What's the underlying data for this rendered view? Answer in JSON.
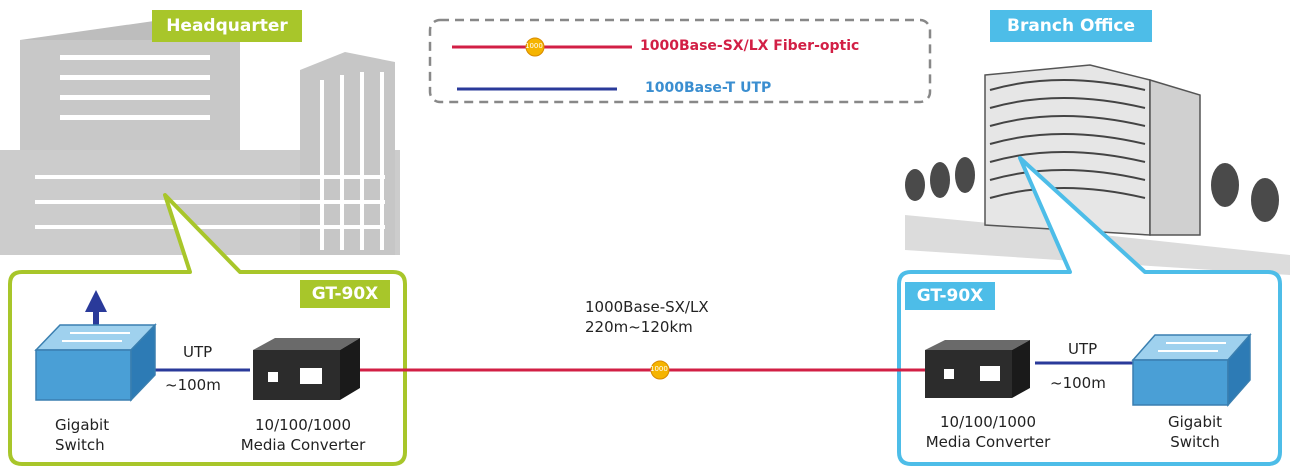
{
  "colors": {
    "hq_accent": "#a8c62a",
    "branch_accent": "#4dbde8",
    "fiber": "#d21f45",
    "utp": "#2a3a9a",
    "fiber_marker": "#f5b400",
    "building_gray": "#c2c2c2"
  },
  "hq": {
    "badge": "Headquarter",
    "model": "GT-90X",
    "switch_label": [
      "Gigabit",
      "Switch"
    ],
    "link_label": "UTP",
    "link_distance": "~100m",
    "converter_label": [
      "10/100/1000",
      "Media Converter"
    ]
  },
  "branch": {
    "badge": "Branch Office",
    "model": "GT-90X",
    "switch_label": [
      "Gigabit",
      "Switch"
    ],
    "link_label": "UTP",
    "link_distance": "~100m",
    "converter_label": [
      "10/100/1000",
      "Media Converter"
    ]
  },
  "legend": {
    "fiber_label": "1000Base-SX/LX Fiber-optic",
    "utp_label": "1000Base-T UTP",
    "marker_text": "1000"
  },
  "fiber_link": {
    "line1": "1000Base-SX/LX",
    "line2": "220m~120km",
    "marker_text": "1000"
  },
  "icons": [
    "hq-building-icon",
    "branch-building-icon",
    "switch-icon",
    "media-converter-icon",
    "up-arrow-icon"
  ]
}
